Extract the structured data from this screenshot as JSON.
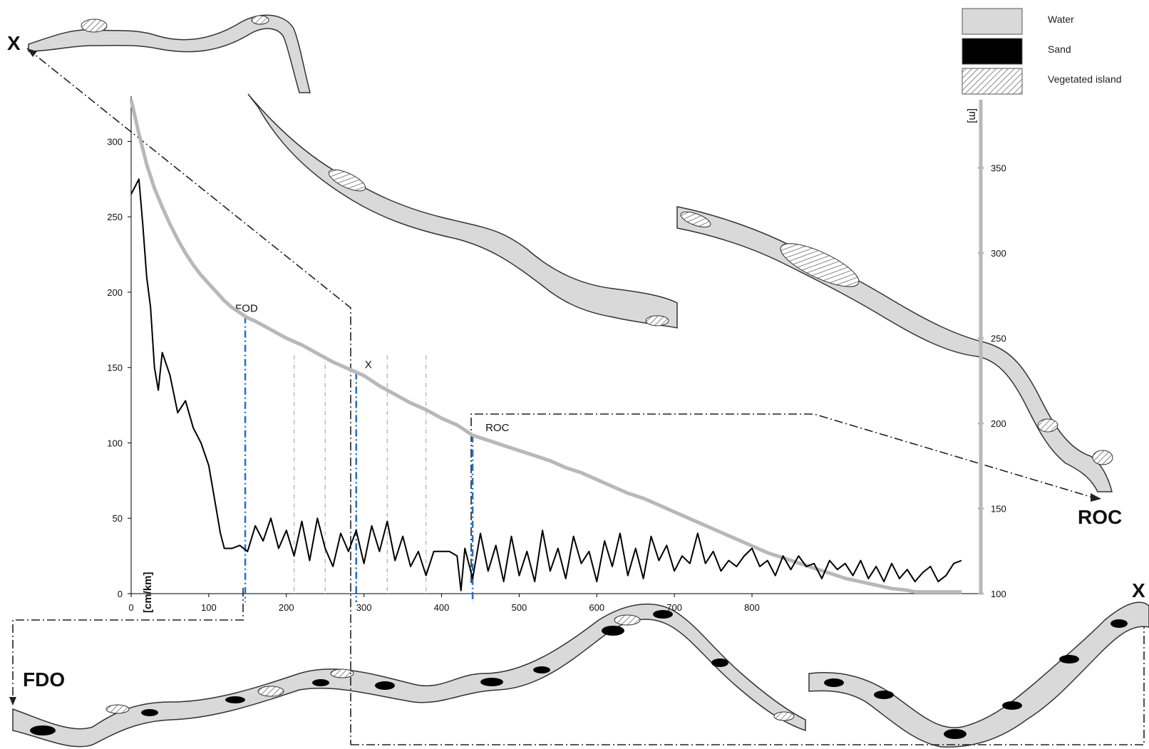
{
  "chart_data": {
    "type": "line",
    "title": "",
    "xlabel": "",
    "ylabel": "[cm/km]",
    "y2label": "[m]",
    "xlim": [
      0,
      1070
    ],
    "ylim": [
      0,
      330
    ],
    "y2lim": [
      100,
      390
    ],
    "x_ticks": [
      0,
      100,
      200,
      300,
      400,
      500,
      600,
      700,
      800
    ],
    "x_tick_labels": [
      "0",
      "100",
      "200",
      "300",
      "400",
      "500",
      "600",
      "700",
      "800"
    ],
    "y_ticks": [
      0,
      50,
      100,
      150,
      200,
      250,
      300
    ],
    "y2_ticks": [
      100,
      150,
      200,
      250,
      300,
      350
    ],
    "grid": false,
    "series": [
      {
        "name": "",
        "axis": "left",
        "color": "#000000",
        "x": [
          0,
          10,
          15,
          20,
          25,
          30,
          35,
          40,
          50,
          60,
          70,
          80,
          90,
          100,
          110,
          115,
          120,
          130,
          140,
          150,
          160,
          170,
          180,
          190,
          200,
          210,
          220,
          230,
          240,
          250,
          260,
          270,
          280,
          290,
          300,
          310,
          320,
          330,
          340,
          350,
          360,
          370,
          380,
          390,
          400,
          410,
          420,
          425,
          430,
          440,
          450,
          460,
          470,
          480,
          490,
          500,
          510,
          520,
          530,
          540,
          550,
          560,
          570,
          580,
          590,
          600,
          610,
          620,
          630,
          640,
          650,
          660,
          670,
          680,
          690,
          700,
          710,
          720,
          730,
          740,
          750,
          760,
          770,
          780,
          790,
          800,
          810,
          820,
          830,
          840,
          850,
          860,
          870,
          880,
          890,
          900,
          910,
          920,
          930,
          940,
          950,
          960,
          970,
          980,
          990,
          1000,
          1010,
          1020,
          1030,
          1040,
          1050,
          1060,
          1070
        ],
        "values": [
          265,
          275,
          245,
          210,
          190,
          150,
          135,
          160,
          145,
          120,
          128,
          110,
          100,
          85,
          55,
          40,
          30,
          30,
          32,
          28,
          45,
          35,
          50,
          30,
          42,
          25,
          48,
          22,
          50,
          30,
          18,
          40,
          28,
          42,
          20,
          45,
          28,
          48,
          22,
          38,
          18,
          28,
          12,
          28,
          28,
          28,
          25,
          2,
          30,
          10,
          40,
          15,
          32,
          8,
          38,
          12,
          28,
          8,
          42,
          15,
          30,
          10,
          38,
          20,
          28,
          8,
          35,
          18,
          40,
          12,
          30,
          10,
          38,
          22,
          32,
          15,
          25,
          20,
          40,
          20,
          28,
          15,
          22,
          18,
          25,
          30,
          18,
          22,
          12,
          25,
          16,
          25,
          18,
          20,
          10,
          22,
          16,
          20,
          12,
          22,
          10,
          18,
          8,
          20,
          10,
          16,
          8,
          14,
          18,
          8,
          12,
          20,
          22
        ],
        "note_filled_drop_at": 425
      },
      {
        "name": "",
        "axis": "right",
        "color": "#b8b8b8",
        "x": [
          0,
          10,
          20,
          30,
          40,
          50,
          60,
          70,
          80,
          90,
          100,
          110,
          120,
          130,
          140,
          150,
          160,
          180,
          200,
          220,
          240,
          260,
          280,
          300,
          320,
          340,
          360,
          380,
          400,
          420,
          430,
          440,
          460,
          480,
          500,
          520,
          540,
          560,
          580,
          600,
          620,
          640,
          660,
          680,
          700,
          720,
          740,
          760,
          780,
          800,
          820,
          840,
          860,
          880,
          900,
          920,
          940,
          960,
          980,
          1000,
          1010,
          1020,
          1030,
          1040,
          1050,
          1060,
          1070
        ],
        "values": [
          390,
          370,
          352,
          338,
          327,
          317,
          308,
          300,
          293,
          287,
          282,
          277,
          272,
          268,
          265,
          262,
          260,
          255,
          250,
          246,
          241,
          236,
          232,
          228,
          222,
          217,
          212,
          208,
          203,
          199,
          196,
          193,
          190,
          187,
          184,
          181,
          178,
          174,
          171,
          167,
          163,
          159,
          156,
          152,
          148,
          144,
          140,
          136,
          132,
          128,
          124,
          121,
          118,
          115,
          112,
          109,
          107,
          105,
          103,
          102,
          101,
          101,
          101,
          101,
          101,
          101,
          101
        ]
      }
    ],
    "markers": [
      {
        "label": "FOD",
        "x": 147
      },
      {
        "label": "X",
        "x": 290
      },
      {
        "label": "ROC",
        "x": 440
      }
    ],
    "minor_markers_x": [
      210,
      250,
      330,
      380
    ],
    "legend": {
      "position": "top-right",
      "items": [
        {
          "label": "Water",
          "pattern": "light-gray",
          "color": "#d9d9d9"
        },
        {
          "label": "Sand",
          "pattern": "black",
          "color": "#000000"
        },
        {
          "label": "Vegetated island",
          "pattern": "hatched",
          "color": "#ffffff"
        }
      ]
    }
  },
  "map_labels": {
    "top_left": "X",
    "right": "ROC",
    "bottom_left": "FDO",
    "bottom_right": "X"
  },
  "colors": {
    "water": "#d9d9d9",
    "water_edge": "#555555",
    "sand": "#000000",
    "marker_blue": "#1f6fd1",
    "leader": "#222222"
  }
}
